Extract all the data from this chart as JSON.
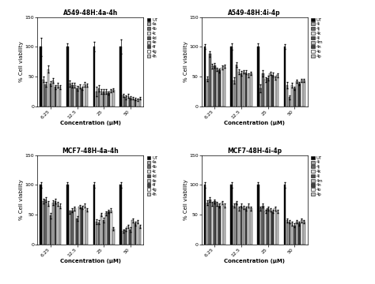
{
  "subplots": [
    {
      "title": "A549-48H:4a-4h",
      "legend_labels": [
        "UT",
        "4a",
        "4b",
        "4c",
        "4d",
        "4e",
        "4f",
        "4g",
        "4h"
      ],
      "concentrations": [
        "6.25",
        "12.5",
        "25",
        "50"
      ],
      "data": {
        "UT": [
          100,
          100,
          100,
          100
        ],
        "4a": [
          45,
          38,
          25,
          18
        ],
        "4b": [
          36,
          35,
          30,
          15
        ],
        "4c": [
          62,
          35,
          25,
          17
        ],
        "4d": [
          38,
          30,
          25,
          14
        ],
        "4e": [
          43,
          33,
          24,
          13
        ],
        "4f": [
          32,
          30,
          22,
          12
        ],
        "4g": [
          35,
          37,
          26,
          11
        ],
        "4h": [
          32,
          35,
          27,
          13
        ]
      },
      "errors": {
        "UT": [
          15,
          5,
          8,
          12
        ],
        "4a": [
          5,
          5,
          8,
          3
        ],
        "4b": [
          4,
          4,
          5,
          3
        ],
        "4c": [
          6,
          4,
          4,
          3
        ],
        "4d": [
          4,
          4,
          4,
          2
        ],
        "4e": [
          4,
          3,
          4,
          2
        ],
        "4f": [
          3,
          3,
          3,
          2
        ],
        "4g": [
          4,
          4,
          3,
          2
        ],
        "4h": [
          3,
          3,
          3,
          2
        ]
      }
    },
    {
      "title": "A549-48H:4i-4p",
      "legend_labels": [
        "UT",
        "4i",
        "4j",
        "4k",
        "4l",
        "4m",
        "4n",
        "4o",
        "4p"
      ],
      "concentrations": [
        "6.25",
        "12.5",
        "25",
        "50"
      ],
      "data": {
        "UT": [
          100,
          100,
          100,
          100
        ],
        "4i": [
          46,
          43,
          30,
          35
        ],
        "4j": [
          88,
          70,
          55,
          15
        ],
        "4k": [
          67,
          58,
          45,
          35
        ],
        "4l": [
          68,
          55,
          47,
          30
        ],
        "4m": [
          62,
          58,
          55,
          42
        ],
        "4n": [
          60,
          57,
          53,
          38
        ],
        "4o": [
          65,
          52,
          47,
          43
        ],
        "4p": [
          67,
          55,
          52,
          43
        ]
      },
      "errors": {
        "UT": [
          4,
          5,
          5,
          4
        ],
        "4i": [
          4,
          5,
          7,
          5
        ],
        "4j": [
          5,
          4,
          5,
          3
        ],
        "4k": [
          4,
          4,
          4,
          4
        ],
        "4l": [
          4,
          4,
          4,
          3
        ],
        "4m": [
          3,
          3,
          3,
          3
        ],
        "4n": [
          3,
          3,
          3,
          3
        ],
        "4o": [
          3,
          3,
          3,
          3
        ],
        "4p": [
          3,
          3,
          3,
          3
        ]
      }
    },
    {
      "title": "MCF7-48H-4a-4h",
      "legend_labels": [
        "UT",
        "4a",
        "4b",
        "4c",
        "4d",
        "4e",
        "4f",
        "4g",
        "4h"
      ],
      "concentrations": [
        "6.25",
        "12.5",
        "25",
        "50"
      ],
      "data": {
        "UT": [
          100,
          100,
          100,
          100
        ],
        "4a": [
          73,
          54,
          38,
          22
        ],
        "4b": [
          75,
          57,
          37,
          25
        ],
        "4c": [
          68,
          60,
          50,
          30
        ],
        "4d": [
          48,
          43,
          40,
          25
        ],
        "4e": [
          70,
          63,
          52,
          40
        ],
        "4f": [
          72,
          62,
          55,
          35
        ],
        "4g": [
          68,
          65,
          57,
          38
        ],
        "4h": [
          65,
          58,
          26,
          30
        ]
      },
      "errors": {
        "UT": [
          5,
          5,
          5,
          5
        ],
        "4a": [
          4,
          3,
          4,
          3
        ],
        "4b": [
          4,
          3,
          3,
          3
        ],
        "4c": [
          4,
          3,
          3,
          3
        ],
        "4d": [
          5,
          4,
          4,
          4
        ],
        "4e": [
          4,
          3,
          3,
          3
        ],
        "4f": [
          4,
          3,
          3,
          3
        ],
        "4g": [
          3,
          3,
          3,
          3
        ],
        "4h": [
          4,
          3,
          3,
          3
        ]
      }
    },
    {
      "title": "MCF7-48H-4i-4p",
      "legend_labels": [
        "UT",
        "4i",
        "4j",
        "4k",
        "4l",
        "4m",
        "4n",
        "4o",
        "4p"
      ],
      "concentrations": [
        "6.25",
        "12.5",
        "25",
        "50"
      ],
      "data": {
        "UT": [
          100,
          100,
          100,
          100
        ],
        "4i": [
          70,
          65,
          60,
          40
        ],
        "4j": [
          75,
          70,
          65,
          38
        ],
        "4k": [
          68,
          60,
          55,
          35
        ],
        "4l": [
          72,
          65,
          60,
          32
        ],
        "4m": [
          68,
          62,
          58,
          38
        ],
        "4n": [
          65,
          60,
          55,
          35
        ],
        "4o": [
          70,
          65,
          60,
          40
        ],
        "4p": [
          65,
          60,
          55,
          38
        ]
      },
      "errors": {
        "UT": [
          5,
          5,
          5,
          5
        ],
        "4i": [
          4,
          3,
          3,
          3
        ],
        "4j": [
          4,
          3,
          3,
          3
        ],
        "4k": [
          3,
          3,
          3,
          3
        ],
        "4l": [
          3,
          3,
          3,
          3
        ],
        "4m": [
          3,
          3,
          3,
          3
        ],
        "4n": [
          3,
          3,
          3,
          3
        ],
        "4o": [
          3,
          3,
          3,
          3
        ],
        "4p": [
          3,
          3,
          3,
          3
        ]
      }
    }
  ],
  "bar_colors": {
    "UT": "#000000",
    "4a": "#a0a0a0",
    "4i": "#a0a0a0",
    "4b": "#686868",
    "4j": "#686868",
    "4c": "#d8d8d8",
    "4k": "#d8d8d8",
    "4d": "#505050",
    "4l": "#505050",
    "4e": "#b8b8b8",
    "4m": "#b8b8b8",
    "4f": "#404040",
    "4n": "#404040",
    "4g": "#ececec",
    "4o": "#ececec",
    "4h": "#c0c0c0",
    "4p": "#c0c0c0"
  },
  "ylabel": "% Cell viability",
  "xlabel": "Concentration (μM)",
  "ylim": [
    0,
    150
  ],
  "yticks": [
    0,
    50,
    100,
    150
  ],
  "figsize": [
    4.74,
    3.6
  ],
  "dpi": 100
}
